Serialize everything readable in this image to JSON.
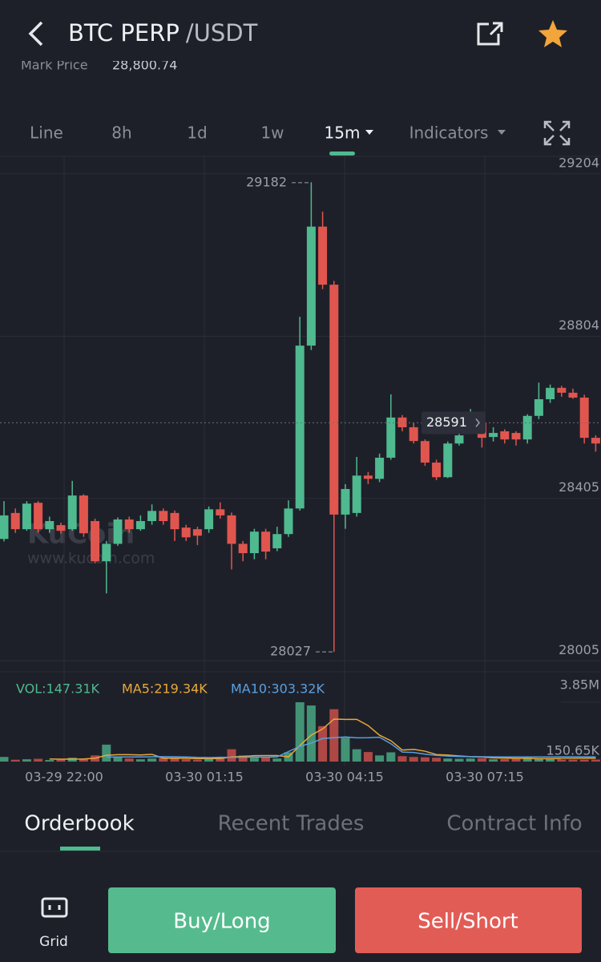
{
  "header": {
    "title": "BTC PERP",
    "quote": "/USDT"
  },
  "mark_price": {
    "label": "Mark Price",
    "value": "28,800.74"
  },
  "intervals": [
    "Line",
    "8h",
    "1d",
    "1w",
    "15m",
    "Indicators"
  ],
  "watermark": {
    "logo": "KuCoin",
    "url": "www.kucoin.com"
  },
  "chart_data": {
    "type": "candlestick",
    "up_color": "#4fb98f",
    "down_color": "#e0564f",
    "open": [
      28305,
      28369,
      28329,
      28394,
      28329,
      28339,
      28329,
      28412,
      28349,
      28250,
      28293,
      28353,
      28329,
      28349,
      28374,
      28369,
      28333,
      28329,
      28329,
      28378,
      28363,
      28293,
      28270,
      28323,
      28282,
      28317,
      28380,
      28781,
      29074,
      28931,
      28365,
      28369,
      28461,
      28453,
      28505,
      28604,
      28580,
      28546,
      28493,
      28457,
      28540,
      28580,
      28592,
      28556,
      28570,
      28566,
      28550,
      28608,
      28649,
      28677,
      28665,
      28653,
      28554
    ],
    "high": [
      28398,
      28380,
      28398,
      28398,
      28360,
      28345,
      28448,
      28415,
      28355,
      28300,
      28358,
      28360,
      28363,
      28390,
      28380,
      28375,
      28340,
      28335,
      28385,
      28395,
      28370,
      28300,
      28330,
      28330,
      28335,
      28400,
      28852,
      29182,
      29111,
      28940,
      28440,
      28507,
      28470,
      28515,
      28661,
      28610,
      28590,
      28550,
      28500,
      28545,
      28570,
      28625,
      28600,
      28580,
      28575,
      28570,
      28612,
      28690,
      28685,
      28682,
      28675,
      28660,
      28560
    ],
    "low": [
      28299,
      28320,
      28325,
      28320,
      28320,
      28318,
      28325,
      28310,
      28245,
      28171,
      28288,
      28320,
      28325,
      28340,
      28340,
      28300,
      28300,
      28290,
      28320,
      28355,
      28230,
      28250,
      28255,
      28255,
      28275,
      28310,
      28375,
      28770,
      28920,
      28027,
      28330,
      28360,
      28440,
      28445,
      28500,
      28570,
      28540,
      28485,
      28450,
      28455,
      28535,
      28575,
      28530,
      28545,
      28540,
      28535,
      28540,
      28600,
      28640,
      28655,
      28650,
      28540,
      28520
    ],
    "close": [
      28363,
      28329,
      28392,
      28329,
      28349,
      28325,
      28412,
      28319,
      28250,
      28293,
      28353,
      28329,
      28349,
      28374,
      28349,
      28329,
      28309,
      28313,
      28378,
      28363,
      28293,
      28270,
      28323,
      28274,
      28317,
      28380,
      28781,
      29074,
      28931,
      28365,
      28428,
      28461,
      28453,
      28505,
      28604,
      28580,
      28546,
      28493,
      28457,
      28540,
      28560,
      28592,
      28554,
      28566,
      28550,
      28550,
      28608,
      28649,
      28677,
      28665,
      28653,
      28554,
      28540
    ],
    "ylim": [
      27974,
      29247
    ],
    "yticks": [
      29204,
      28804,
      28405,
      28005
    ],
    "grid": true,
    "x_labels": [
      "03-29 22:00",
      "03-30 01:15",
      "03-30 04:15",
      "03-30 07:15"
    ],
    "high_annotation": 29182,
    "low_annotation": 28027,
    "last_price": 28591,
    "volume": [
      300000,
      120000,
      150000,
      180000,
      100000,
      120000,
      250000,
      200000,
      400000,
      1100000,
      300000,
      200000,
      150000,
      200000,
      250000,
      220000,
      150000,
      120000,
      250000,
      200000,
      800000,
      400000,
      250000,
      300000,
      200000,
      600000,
      3850000,
      3640000,
      2300000,
      3400000,
      1550000,
      800000,
      620000,
      400000,
      600000,
      350000,
      300000,
      280000,
      250000,
      200000,
      180000,
      200000,
      220000,
      150000,
      160000,
      180000,
      250000,
      200000,
      180000,
      150000,
      160000,
      150000,
      147310
    ],
    "ma5": [
      null,
      null,
      null,
      null,
      170000,
      154000,
      160000,
      170000,
      214000,
      410000,
      450000,
      450000,
      430000,
      470000,
      220000,
      224000,
      214000,
      188000,
      198000,
      198000,
      300000,
      334000,
      384000,
      390000,
      390000,
      310000,
      1040000,
      1720000,
      2118000,
      2758000,
      2738000,
      2738000,
      2338000,
      1714000,
      1354000,
      748000,
      794000,
      674000,
      454000,
      426000,
      366000,
      316000,
      296000,
      242000,
      226000,
      210000,
      206000,
      190000,
      188000,
      202000,
      208000,
      215000,
      219340
    ],
    "ma10": [
      null,
      null,
      null,
      null,
      null,
      null,
      null,
      null,
      null,
      290000,
      300000,
      300000,
      300000,
      310000,
      320000,
      310000,
      300000,
      270000,
      260000,
      280000,
      270000,
      280000,
      290000,
      285000,
      305000,
      650000,
      990000,
      1200000,
      1500000,
      1550000,
      1600000,
      1540000,
      1550000,
      1580000,
      1160000,
      620000,
      590000,
      480000,
      400000,
      360000,
      330000,
      320000,
      310000,
      305000,
      300000,
      300000,
      300000,
      300000,
      302000,
      303000,
      303000,
      303000,
      303320
    ],
    "ma5_color": "#e8a93a",
    "ma10_color": "#5aa0e0",
    "vol_ylim": [
      0,
      3850000
    ],
    "vol_ticks": [
      {
        "value": 3850000,
        "label": "3.85M"
      },
      {
        "value": 150650,
        "label": "150.65K"
      }
    ],
    "vol_legend": [
      "VOL:147.31K",
      "MA5:219.34K",
      "MA10:303.32K"
    ]
  },
  "tabs": [
    "Orderbook",
    "Recent Trades",
    "Contract Info"
  ],
  "actions": {
    "grid": "Grid",
    "buy": "Buy/Long",
    "sell": "Sell/Short"
  }
}
